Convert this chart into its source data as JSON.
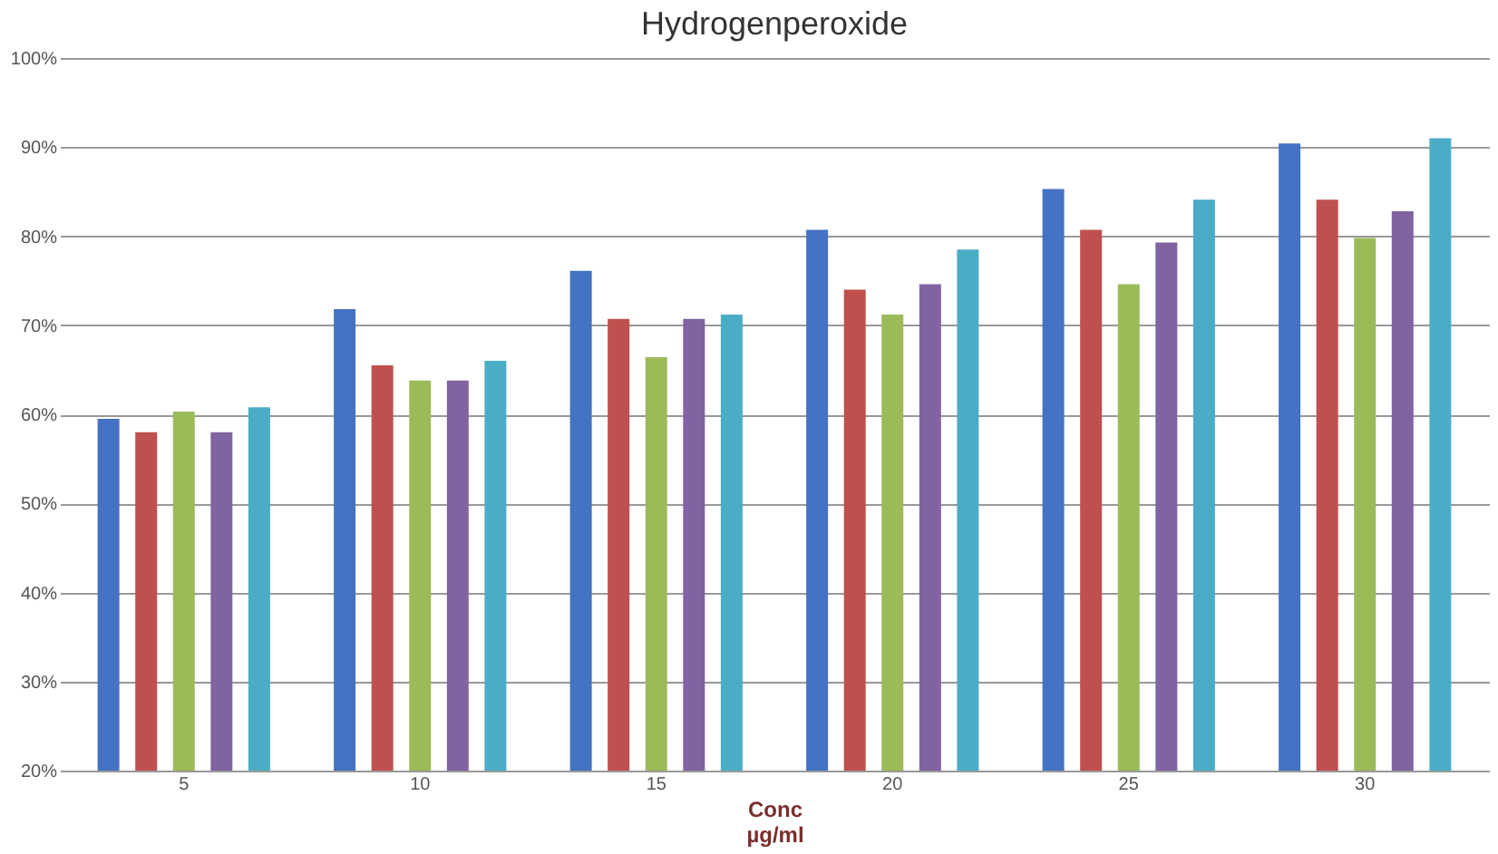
{
  "chart_data": {
    "type": "bar",
    "title": "Hydrogenperoxide",
    "xlabel": "Conc\nµg/ml",
    "categories": [
      "5",
      "10",
      "15",
      "20",
      "25",
      "30"
    ],
    "series": [
      {
        "color": "#4472c4",
        "values": [
          59.5,
          71.8,
          76.1,
          80.7,
          85.3,
          90.4
        ]
      },
      {
        "color": "#c0504d",
        "values": [
          58,
          65.5,
          70.7,
          74,
          80.7,
          84.1
        ]
      },
      {
        "color": "#9bbb59",
        "values": [
          60.3,
          63.8,
          66.4,
          71.2,
          74.6,
          79.8
        ]
      },
      {
        "color": "#8064a2",
        "values": [
          58,
          63.8,
          70.7,
          74.6,
          79.3,
          82.8
        ]
      },
      {
        "color": "#4bacc6",
        "values": [
          60.8,
          66,
          71.2,
          78.5,
          84.1,
          91
        ]
      }
    ],
    "ylim": [
      20,
      100
    ],
    "yticks": [
      {
        "value": 20,
        "label": "20%"
      },
      {
        "value": 30,
        "label": "30%"
      },
      {
        "value": 40,
        "label": "40%"
      },
      {
        "value": 50,
        "label": "50%"
      },
      {
        "value": 60,
        "label": "60%"
      },
      {
        "value": 70,
        "label": "70%"
      },
      {
        "value": 80,
        "label": "80%"
      },
      {
        "value": 90,
        "label": "90%"
      },
      {
        "value": 100,
        "label": "100%"
      }
    ],
    "grid": "y"
  }
}
